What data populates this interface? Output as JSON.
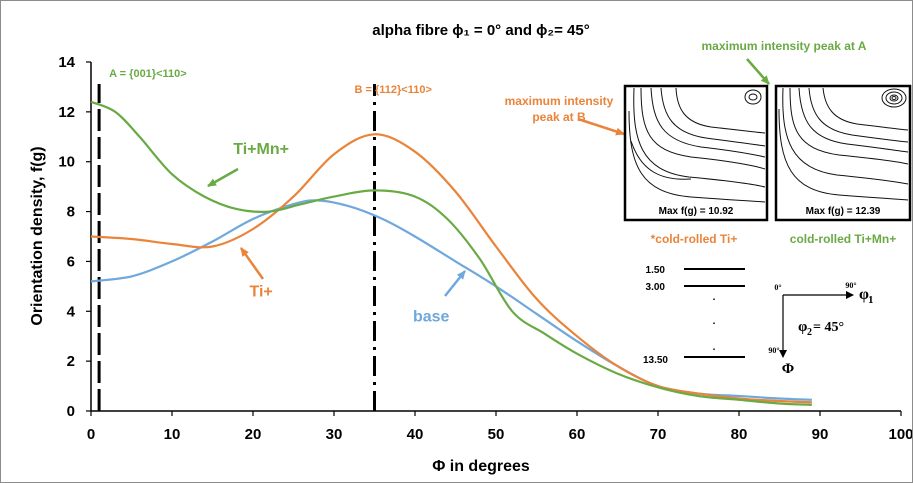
{
  "chart_data": {
    "type": "line",
    "title": "alpha fibre ϕ₁ = 0° and ϕ₂= 45°",
    "xlabel": "Φ in degrees",
    "ylabel": "Orientation density, f(g)",
    "xlim": [
      0,
      100
    ],
    "ylim": [
      0,
      14
    ],
    "xticks": [
      0,
      10,
      20,
      30,
      40,
      50,
      60,
      70,
      80,
      90,
      100
    ],
    "yticks": [
      0,
      2,
      4,
      6,
      8,
      10,
      12,
      14
    ],
    "grid": false,
    "series": [
      {
        "name": "base",
        "color": "#6fa8dc",
        "x": [
          0,
          5,
          10,
          15,
          20,
          25,
          28,
          32,
          36,
          40,
          45,
          50,
          55,
          60,
          65,
          70,
          75,
          80,
          85,
          89
        ],
        "y": [
          5.2,
          5.4,
          6.0,
          6.8,
          7.7,
          8.3,
          8.45,
          8.2,
          7.7,
          7.0,
          6.0,
          5.0,
          3.9,
          2.8,
          1.8,
          1.0,
          0.7,
          0.6,
          0.5,
          0.45
        ]
      },
      {
        "name": "Ti+",
        "color": "#e9843a",
        "x": [
          0,
          5,
          10,
          15,
          20,
          25,
          30,
          35,
          40,
          45,
          50,
          55,
          60,
          65,
          70,
          75,
          80,
          85,
          89
        ],
        "y": [
          7.0,
          6.9,
          6.7,
          6.6,
          7.3,
          8.6,
          10.3,
          11.1,
          10.4,
          8.8,
          6.6,
          4.5,
          3.0,
          1.8,
          1.0,
          0.7,
          0.5,
          0.4,
          0.35
        ]
      },
      {
        "name": "Ti+Mn+",
        "color": "#6aaa45",
        "x": [
          0,
          3,
          6,
          10,
          14,
          18,
          22,
          26,
          30,
          35,
          40,
          44,
          48,
          52,
          56,
          60,
          65,
          70,
          75,
          80,
          85,
          89
        ],
        "y": [
          12.4,
          12.0,
          11.0,
          9.5,
          8.6,
          8.1,
          8.0,
          8.3,
          8.6,
          8.85,
          8.6,
          7.7,
          6.1,
          4.0,
          3.1,
          2.3,
          1.5,
          0.95,
          0.6,
          0.45,
          0.3,
          0.25
        ]
      }
    ],
    "series_labels": [
      {
        "text": "Ti+Mn+",
        "color": "#6aaa45",
        "x": 21,
        "y": 10.3
      },
      {
        "text": "Ti+",
        "color": "#e9843a",
        "x": 21,
        "y": 4.6
      },
      {
        "text": "base",
        "color": "#6fa8dc",
        "x": 42,
        "y": 3.6
      }
    ],
    "vertical_markers": [
      {
        "x": 1,
        "label": "A = {001}<110>",
        "color": "#6aaa45"
      },
      {
        "x": 35,
        "label": "B = {112}<110>",
        "color": "#e9843a"
      }
    ],
    "annotations": {
      "peak_b": "maximum intensity peak at B",
      "peak_b_line1": "maximum intensity",
      "peak_b_line2": "peak at B",
      "peak_a": "maximum intensity peak at A",
      "color_b": "#e9843a",
      "color_a": "#6aaa45"
    },
    "insets": [
      {
        "caption": "*cold-rolled Ti+",
        "max_label": "Max f(g) = 10.92",
        "caption_color": "#e9843a"
      },
      {
        "caption": "cold-rolled Ti+Mn+",
        "max_label": "Max f(g) = 12.39",
        "caption_color": "#6aaa45"
      }
    ],
    "contour_legend": {
      "levels": [
        "1.50",
        "3.00",
        "13.50"
      ],
      "dots": [
        ".",
        ".",
        "."
      ]
    },
    "orientation_key": {
      "origin": "0°",
      "h_end": "90°",
      "v_end": "90°",
      "h_symbol": "φ",
      "h_sub": "1",
      "v_symbol": "Φ",
      "phi2_label": "φ",
      "phi2_sub": "2",
      "phi2_value": "= 45°"
    }
  }
}
